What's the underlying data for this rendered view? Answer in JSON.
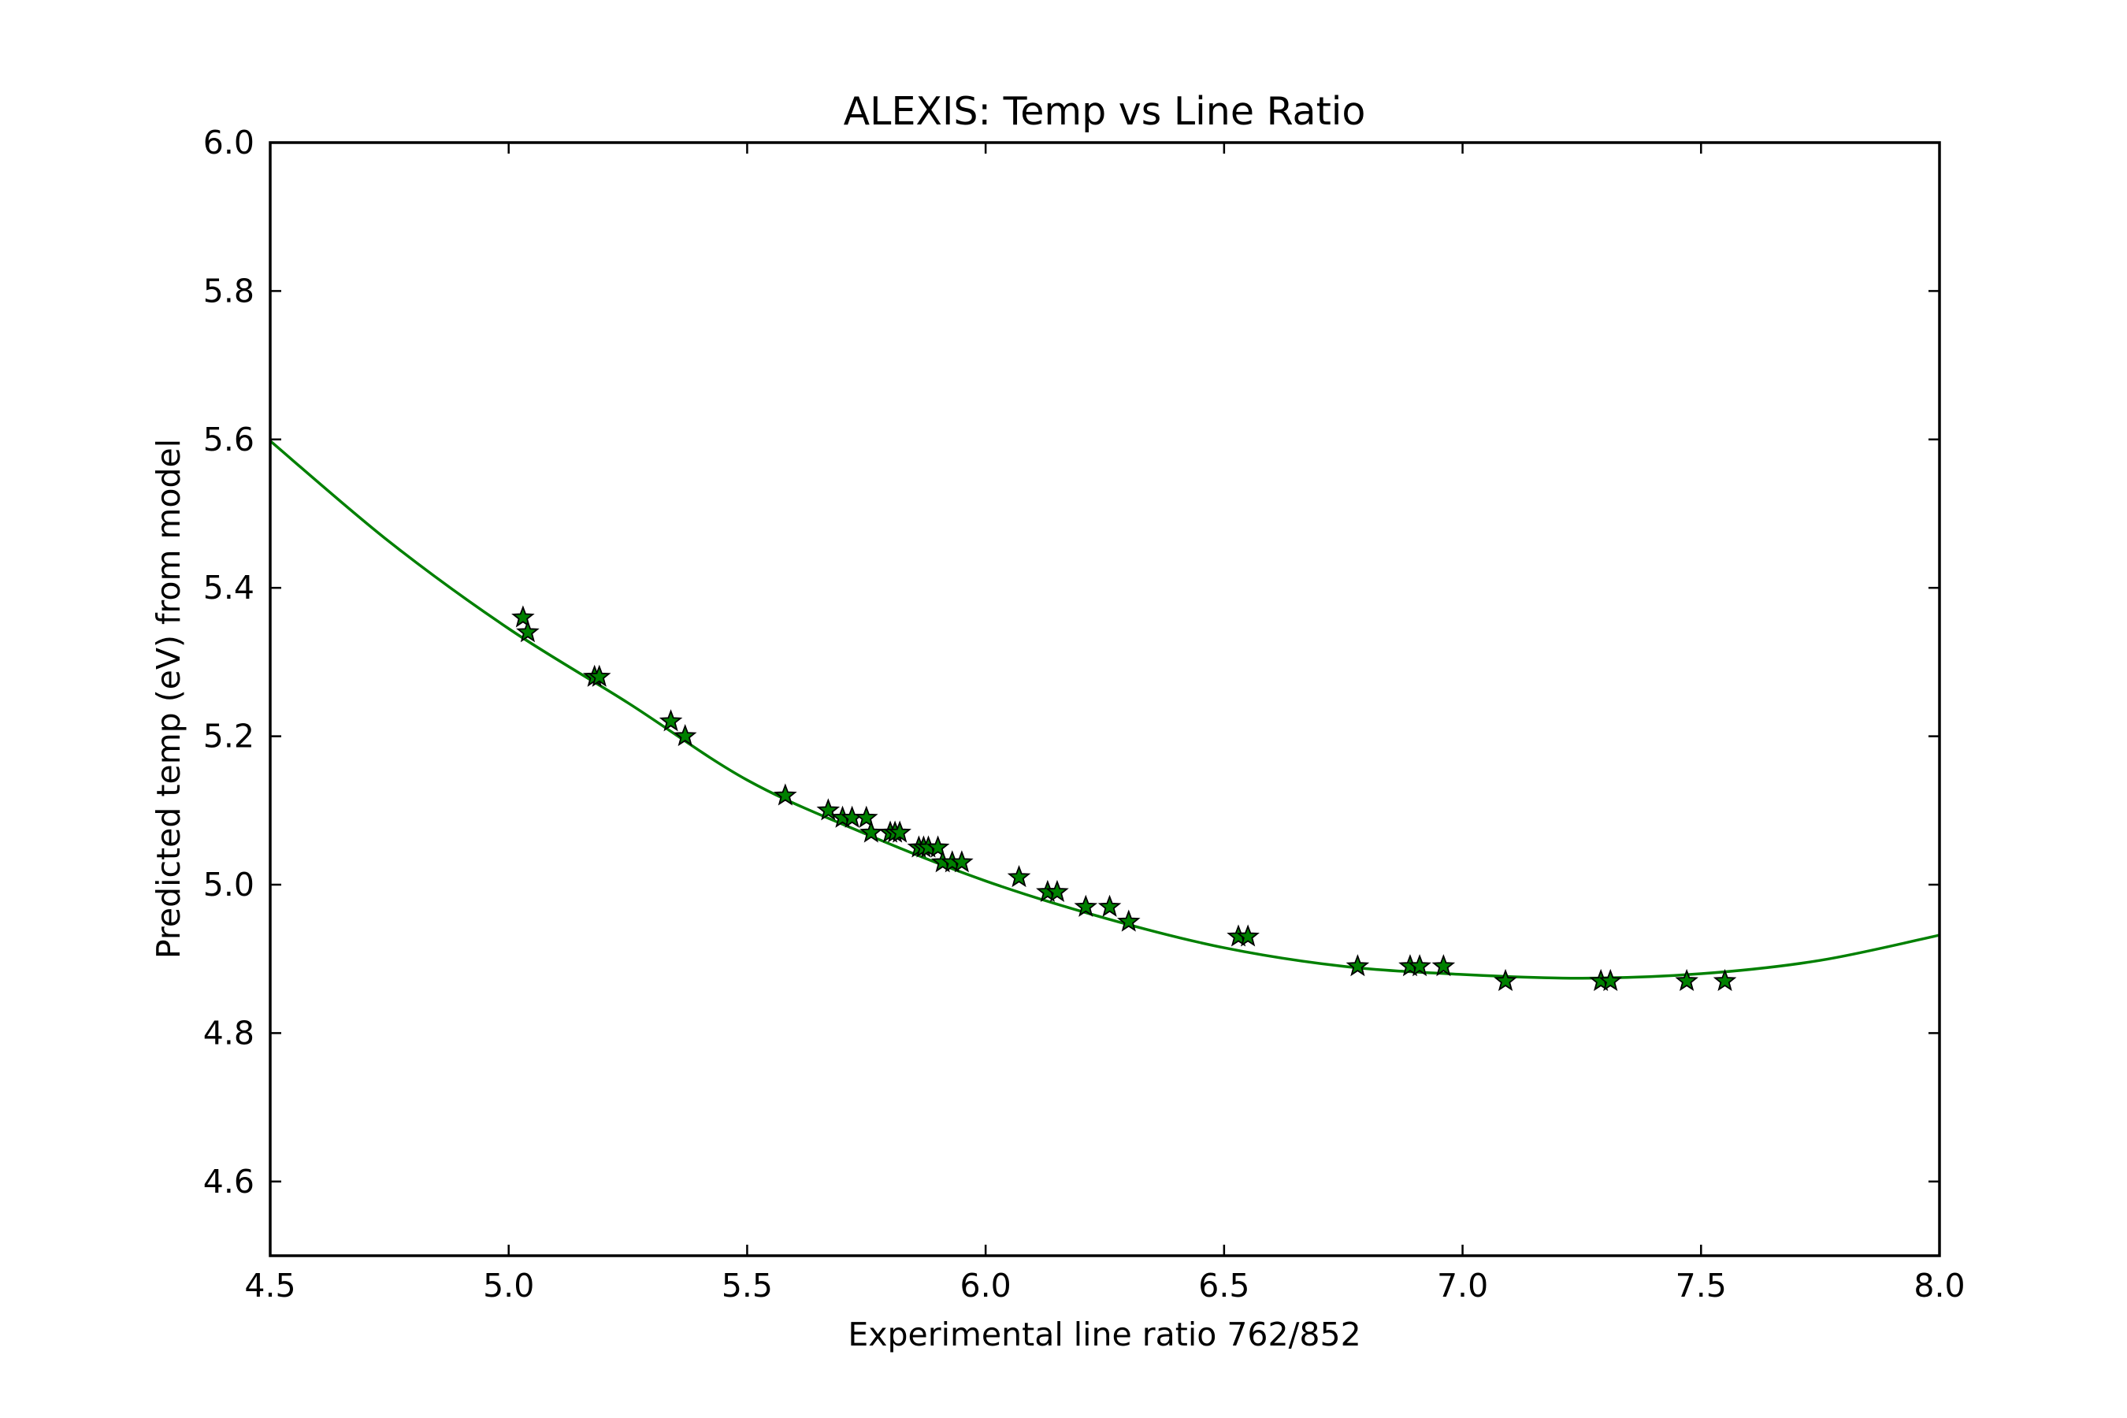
{
  "chart_data": {
    "type": "scatter",
    "title": "ALEXIS: Temp vs Line Ratio",
    "xlabel": "Experimental line ratio 762/852",
    "ylabel": "Predicted temp (eV) from model",
    "xlim": [
      4.5,
      8.0
    ],
    "ylim": [
      4.5,
      6.0
    ],
    "xticks": [
      4.5,
      5.0,
      5.5,
      6.0,
      6.5,
      7.0,
      7.5,
      8.0
    ],
    "xtick_labels": [
      "4.5",
      "5.0",
      "5.5",
      "6.0",
      "6.5",
      "7.0",
      "7.5",
      "8.0"
    ],
    "yticks": [
      4.6,
      4.8,
      5.0,
      5.2,
      5.4,
      5.6,
      5.8,
      6.0
    ],
    "ytick_labels": [
      "4.6",
      "4.8",
      "5.0",
      "5.2",
      "5.4",
      "5.6",
      "5.8",
      "6.0"
    ],
    "grid": false,
    "series": [
      {
        "kind": "scatter",
        "marker": "star",
        "color": "#008000",
        "edgecolor": "#000000",
        "points": [
          [
            5.03,
            5.36
          ],
          [
            5.04,
            5.34
          ],
          [
            5.18,
            5.28
          ],
          [
            5.19,
            5.28
          ],
          [
            5.34,
            5.22
          ],
          [
            5.37,
            5.2
          ],
          [
            5.58,
            5.12
          ],
          [
            5.67,
            5.1
          ],
          [
            5.7,
            5.09
          ],
          [
            5.72,
            5.09
          ],
          [
            5.75,
            5.09
          ],
          [
            5.76,
            5.07
          ],
          [
            5.8,
            5.07
          ],
          [
            5.81,
            5.07
          ],
          [
            5.82,
            5.07
          ],
          [
            5.86,
            5.05
          ],
          [
            5.87,
            5.05
          ],
          [
            5.88,
            5.05
          ],
          [
            5.9,
            5.05
          ],
          [
            5.91,
            5.03
          ],
          [
            5.93,
            5.03
          ],
          [
            5.95,
            5.03
          ],
          [
            6.07,
            5.01
          ],
          [
            6.13,
            4.99
          ],
          [
            6.15,
            4.99
          ],
          [
            6.21,
            4.97
          ],
          [
            6.26,
            4.97
          ],
          [
            6.3,
            4.95
          ],
          [
            6.53,
            4.93
          ],
          [
            6.55,
            4.93
          ],
          [
            6.78,
            4.89
          ],
          [
            6.89,
            4.89
          ],
          [
            6.91,
            4.89
          ],
          [
            6.96,
            4.89
          ],
          [
            7.09,
            4.87
          ],
          [
            7.29,
            4.87
          ],
          [
            7.31,
            4.87
          ],
          [
            7.47,
            4.87
          ],
          [
            7.55,
            4.87
          ]
        ]
      },
      {
        "kind": "line",
        "color": "#008000",
        "x": [
          4.5,
          4.75,
          5.0,
          5.25,
          5.5,
          5.75,
          6.0,
          6.25,
          6.5,
          6.75,
          7.0,
          7.25,
          7.5,
          7.75,
          8.0
        ],
        "y": [
          5.598,
          5.462,
          5.345,
          5.245,
          5.141,
          5.068,
          5.005,
          4.955,
          4.915,
          4.89,
          4.879,
          4.874,
          4.88,
          4.898,
          4.932
        ]
      }
    ]
  }
}
